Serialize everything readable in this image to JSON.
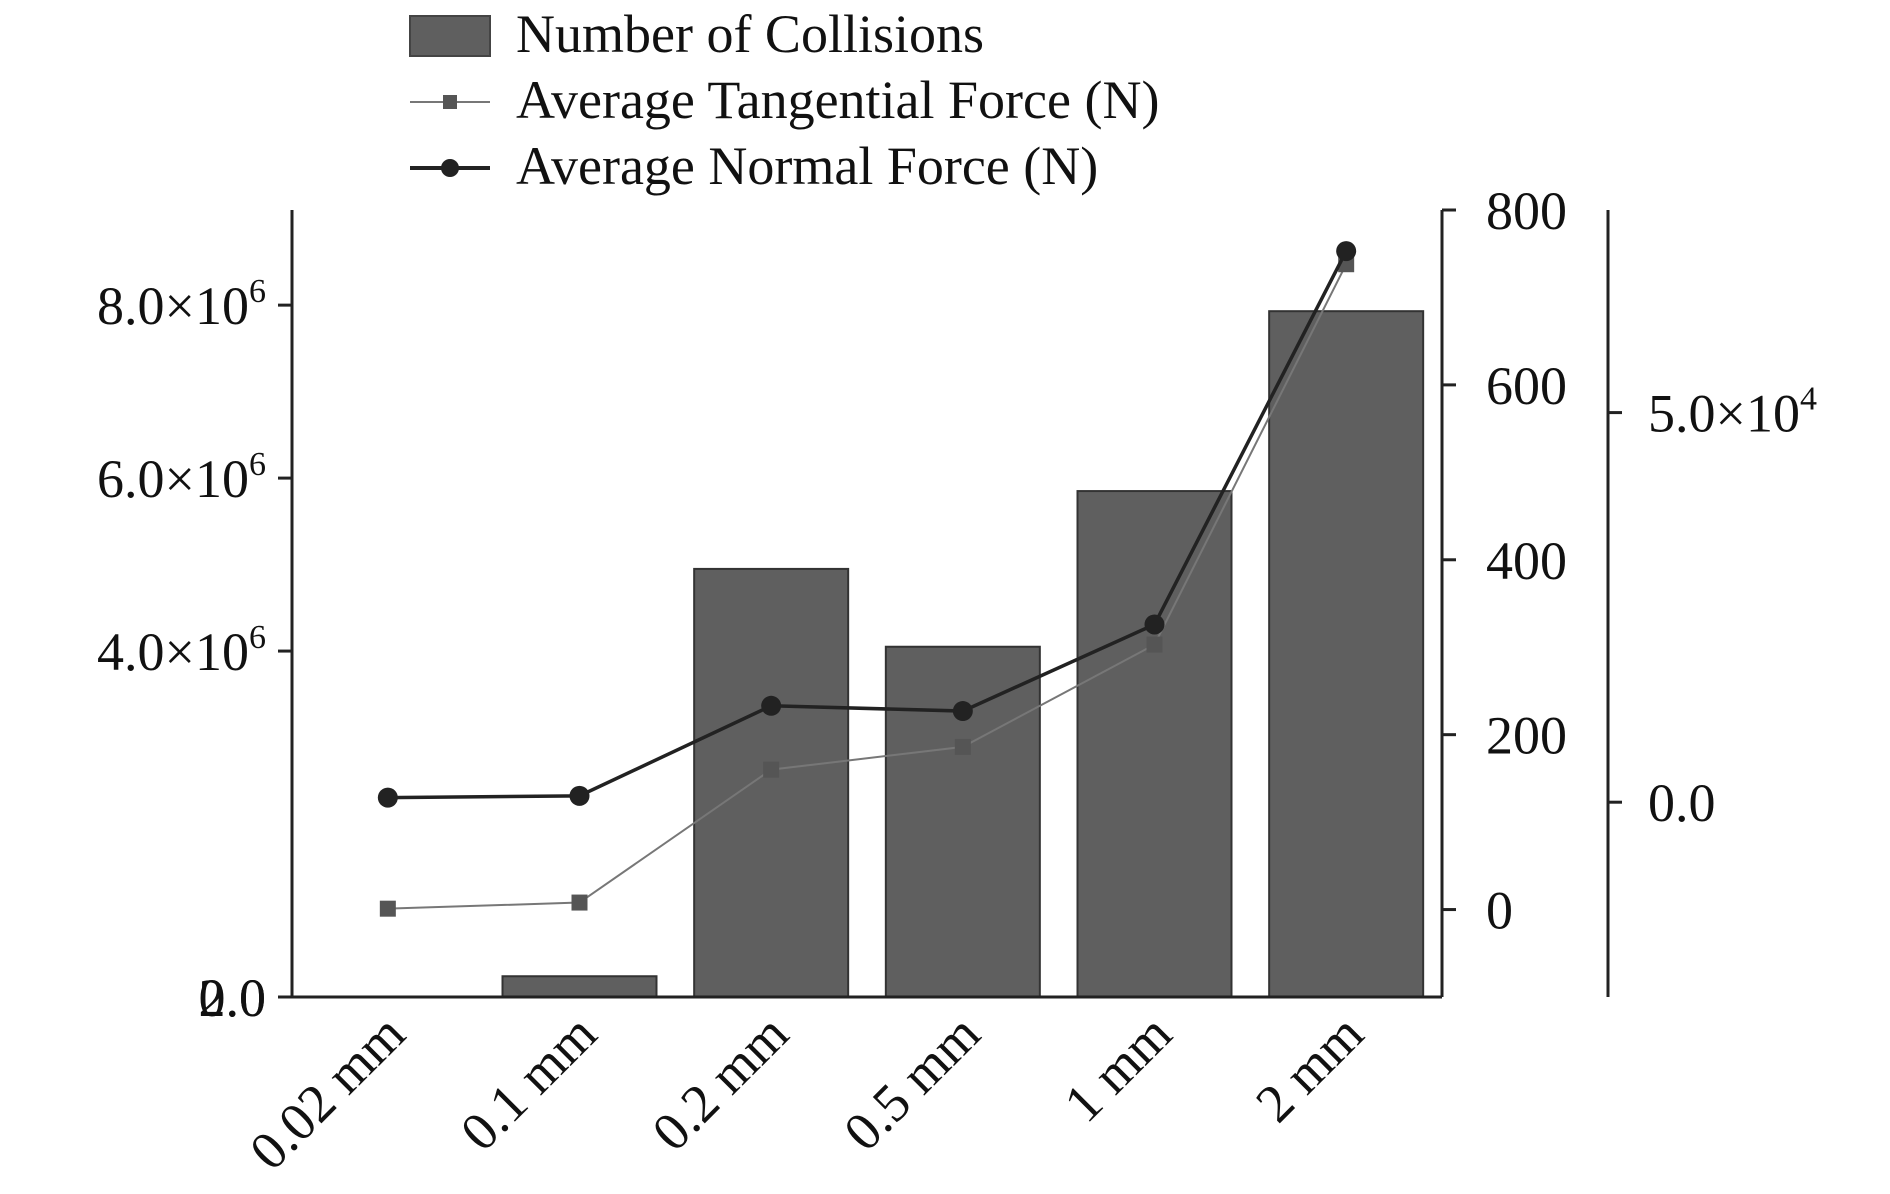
{
  "chart_data": {
    "type": "bar",
    "categories": [
      "0.02 mm",
      "0.1 mm",
      "0.2 mm",
      "0.5 mm",
      "1 mm",
      "2 mm"
    ],
    "series": [
      {
        "name": "Number of Collisions",
        "kind": "bar",
        "axis": "left",
        "color": "#5f5f5f",
        "values": [
          0,
          240000,
          4950000,
          4050000,
          5850000,
          7930000
        ]
      },
      {
        "name": "Average Tangential Force (N)",
        "kind": "line",
        "marker": "square",
        "axis": "right-inner",
        "color": "#555555",
        "values": [
          1,
          8,
          160,
          186,
          303,
          738
        ]
      },
      {
        "name": "Average Normal Force (N)",
        "kind": "line",
        "marker": "circle",
        "axis": "right-inner",
        "color": "#222222",
        "values": [
          128,
          130,
          233,
          227,
          326,
          753
        ]
      }
    ],
    "axes": {
      "left": {
        "range": [
          0,
          9100000
        ],
        "ticks": [
          0,
          2,
          4000000,
          6000000,
          8000000
        ],
        "tick_labels": [
          {
            "mantissa": "0.0",
            "exp": ""
          },
          {
            "mantissa": "2.0",
            "exp": ""
          },
          {
            "mantissa": "4.0×10",
            "exp": "6"
          },
          {
            "mantissa": "6.0×10",
            "exp": "6"
          },
          {
            "mantissa": "8.0×10",
            "exp": "6"
          }
        ]
      },
      "right_inner": {
        "range": [
          -100,
          800
        ],
        "ticks": [
          0,
          200,
          400,
          600,
          800
        ],
        "tick_labels": [
          "0",
          "200",
          "400",
          "600",
          "800"
        ]
      },
      "right_outer": {
        "range": [
          -25000,
          76000
        ],
        "ticks": [
          0,
          50000
        ],
        "tick_labels": [
          {
            "mantissa": "0.0",
            "exp": ""
          },
          {
            "mantissa": "5.0×10",
            "exp": "4"
          }
        ]
      }
    },
    "title": "",
    "xlabel": "",
    "ylabel": "",
    "legend_position": "top-center"
  }
}
